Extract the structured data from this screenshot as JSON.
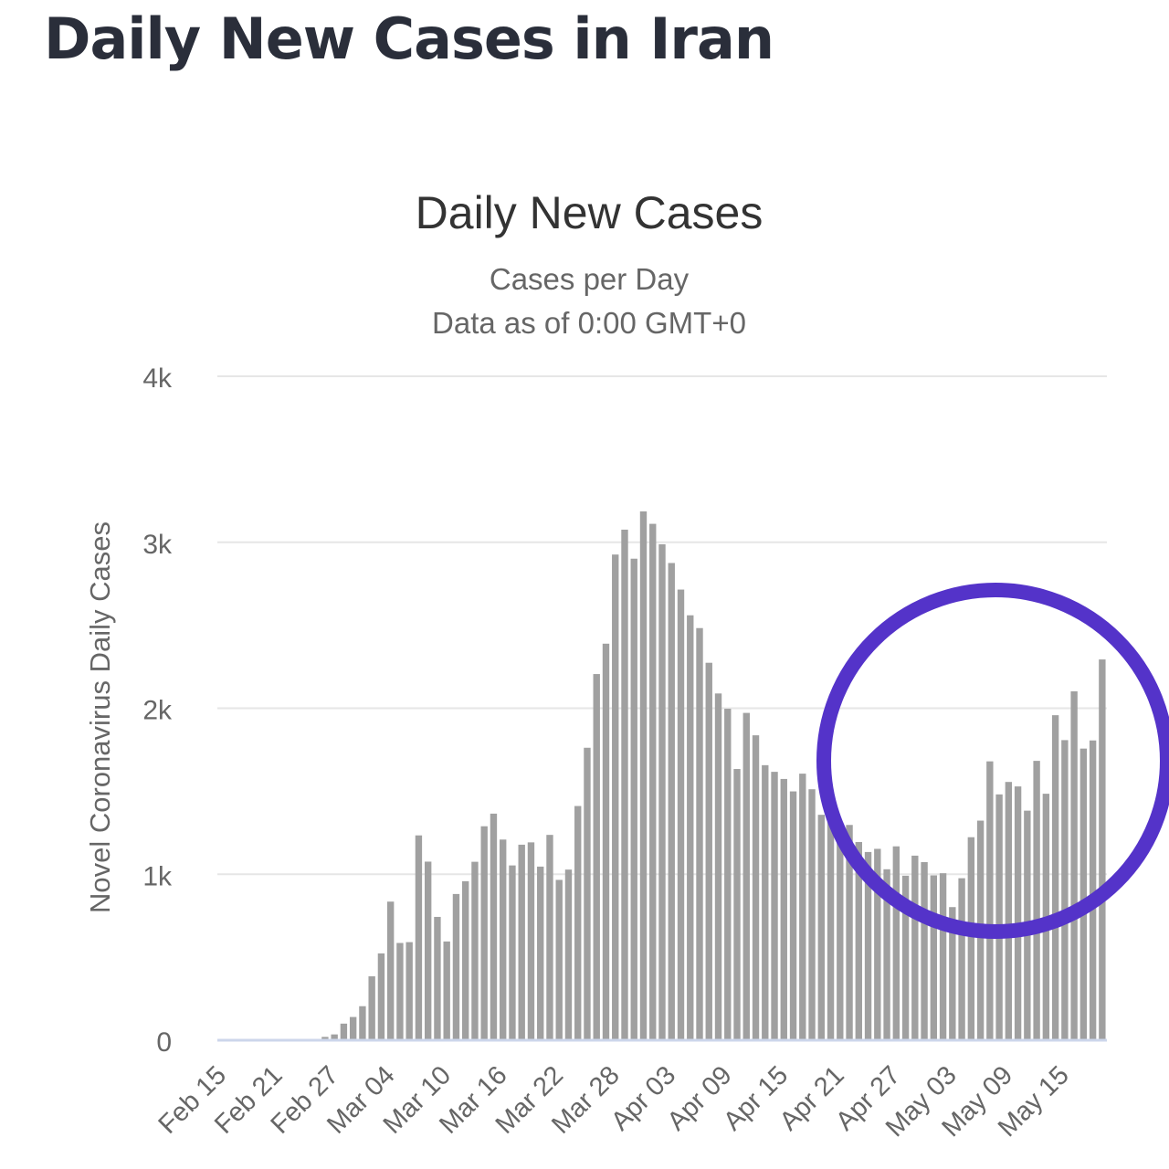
{
  "page": {
    "title": "Daily New Cases in Iran"
  },
  "chart_data": {
    "type": "bar",
    "title": "Daily New Cases",
    "subtitle": [
      "Cases per Day",
      "Data as of 0:00 GMT+0"
    ],
    "xlabel": "",
    "ylabel": "Novel Coronavirus Daily Cases",
    "ylim": [
      0,
      4000
    ],
    "yticks": [
      0,
      1000,
      2000,
      3000,
      4000
    ],
    "ytick_labels": [
      "0",
      "1k",
      "2k",
      "3k",
      "4k"
    ],
    "grid": true,
    "legend": "none",
    "start_date": "Feb 15",
    "xtick_labels": [
      "Feb 15",
      "Feb 21",
      "Feb 27",
      "Mar 04",
      "Mar 10",
      "Mar 16",
      "Mar 22",
      "Mar 28",
      "Apr 03",
      "Apr 09",
      "Apr 15",
      "Apr 21",
      "Apr 27",
      "May 03",
      "May 09",
      "May 15"
    ],
    "values": [
      0,
      0,
      0,
      0,
      0,
      0,
      0,
      0,
      0,
      0,
      0,
      20,
      35,
      100,
      140,
      205,
      385,
      523,
      835,
      586,
      591,
      1234,
      1076,
      743,
      595,
      881,
      958,
      1075,
      1289,
      1365,
      1209,
      1053,
      1178,
      1192,
      1046,
      1237,
      966,
      1028,
      1411,
      1762,
      2206,
      2389,
      2926,
      3076,
      2901,
      3186,
      3111,
      2988,
      2875,
      2715,
      2560,
      2483,
      2274,
      2089,
      1997,
      1634,
      1972,
      1837,
      1657,
      1617,
      1574,
      1499,
      1606,
      1512,
      1358,
      1343,
      1294,
      1297,
      1194,
      1134,
      1153,
      1030,
      1168,
      991,
      1112,
      1073,
      993,
      1006,
      802,
      976,
      1223,
      1323,
      1680,
      1481,
      1556,
      1529,
      1383,
      1683,
      1485,
      1958,
      1808,
      2102,
      1757,
      1806,
      2294
    ],
    "bar_color": "#a0a0a0",
    "annotation": {
      "shape": "circle",
      "color": "#5433c9"
    }
  }
}
